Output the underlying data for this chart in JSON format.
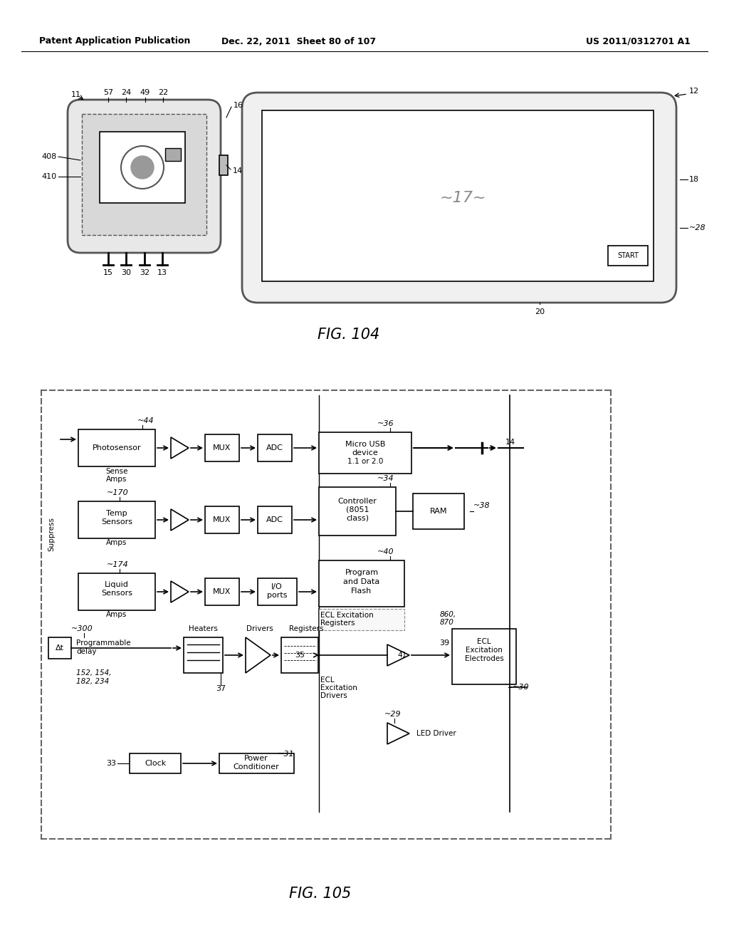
{
  "header_left": "Patent Application Publication",
  "header_mid": "Dec. 22, 2011  Sheet 80 of 107",
  "header_right": "US 2011/0312701 A1",
  "fig104_label": "FIG. 104",
  "fig105_label": "FIG. 105",
  "bg_color": "#ffffff",
  "line_color": "#000000"
}
